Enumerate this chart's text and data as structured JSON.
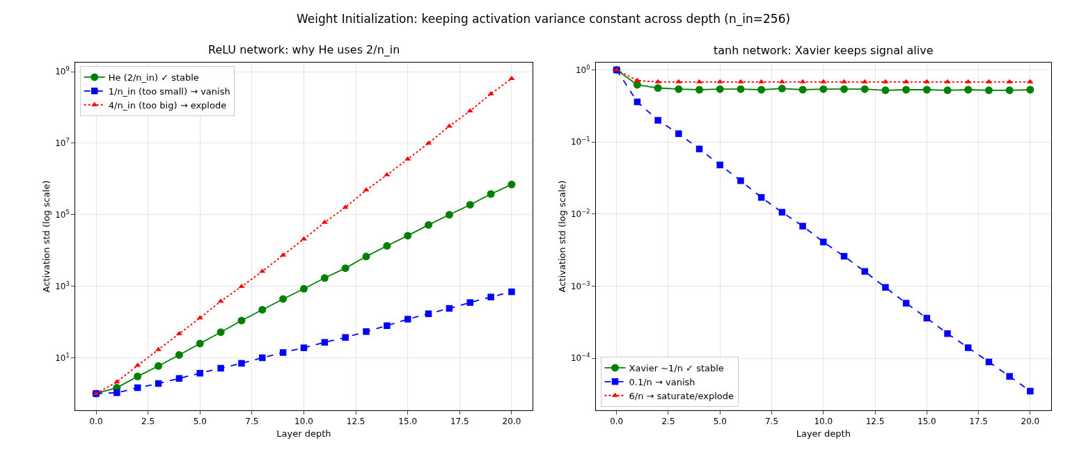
{
  "chart_data": [
    {
      "type": "line",
      "title": "ReLU network: why He uses 2/n_in",
      "xlabel": "Layer depth",
      "ylabel": "Activation std (log scale)",
      "log": "y",
      "grid": true,
      "legend": "top left",
      "annotations": [
        "Weight Initialization: keeping activation variance constant across depth (n_in=256)"
      ],
      "xlim": [
        -1,
        21
      ],
      "xticks": [
        {
          "value": 0,
          "label": "0.0"
        },
        {
          "value": 2.5,
          "label": "2.5"
        },
        {
          "value": 5,
          "label": "5.0"
        },
        {
          "value": 7.5,
          "label": "7.5"
        },
        {
          "value": 10,
          "label": "10.0"
        },
        {
          "value": 12.5,
          "label": "12.5"
        },
        {
          "value": 15,
          "label": "15.0"
        },
        {
          "value": 17.5,
          "label": "17.5"
        },
        {
          "value": 20,
          "label": "20.0"
        }
      ],
      "ylim": [
        0.34,
        1800000000.0
      ],
      "yticks": [
        {
          "value": 10,
          "label": "10$^{1}$"
        },
        {
          "value": 1000,
          "label": "10$^{3}$"
        },
        {
          "value": 100000,
          "label": "10$^{5}$"
        },
        {
          "value": 10000000,
          "label": "10$^{7}$"
        },
        {
          "value": 1000000000,
          "label": "10$^{9}$"
        }
      ],
      "x": [
        0,
        1,
        2,
        3,
        4,
        5,
        6,
        7,
        8,
        9,
        10,
        11,
        12,
        13,
        14,
        15,
        16,
        17,
        18,
        19,
        20
      ],
      "series": [
        {
          "name": "He (2/n_in) ✓ stable",
          "color": "#008000",
          "marker": "circle",
          "line_style": "solid",
          "values": [
            1,
            1.45,
            3.0,
            5.9,
            12,
            25,
            52,
            110,
            220,
            440,
            850,
            1700,
            3200,
            6800,
            13500,
            26000,
            52000,
            100000,
            190000,
            380000,
            700000
          ]
        },
        {
          "name": "1/n_in (too small) → vanish",
          "color": "#0000ff",
          "marker": "square",
          "line_style": "dashed",
          "values": [
            1,
            1.05,
            1.45,
            1.9,
            2.65,
            3.7,
            5.1,
            7,
            10,
            14,
            19,
            27,
            37,
            54,
            79,
            120,
            170,
            240,
            350,
            500,
            700
          ]
        },
        {
          "name": "4/n_in (too big) → explode",
          "color": "#ff0000",
          "marker": "triangle",
          "line_style": "dotted",
          "values": [
            1,
            2.1,
            6.1,
            17,
            47,
            130,
            380,
            980,
            2600,
            7400,
            21000,
            61000,
            160000,
            490000,
            1300000,
            3600000,
            10000000,
            30000000,
            80000000,
            240000000,
            640000000
          ]
        }
      ]
    },
    {
      "type": "line",
      "title": "tanh network: Xavier keeps signal alive",
      "xlabel": "Layer depth",
      "ylabel": "Activation std (log scale)",
      "log": "y",
      "grid": true,
      "legend": "bottom left",
      "xlim": [
        -1,
        21
      ],
      "xticks": [
        {
          "value": 0,
          "label": "0.0"
        },
        {
          "value": 2.5,
          "label": "2.5"
        },
        {
          "value": 5,
          "label": "5.0"
        },
        {
          "value": 7.5,
          "label": "7.5"
        },
        {
          "value": 10,
          "label": "10.0"
        },
        {
          "value": 12.5,
          "label": "12.5"
        },
        {
          "value": 15,
          "label": "15.0"
        },
        {
          "value": 17.5,
          "label": "17.5"
        },
        {
          "value": 20,
          "label": "20.0"
        }
      ],
      "ylim": [
        1.9e-05,
        1.26
      ],
      "yticks": [
        {
          "value": 0.0001,
          "label": "10$^{−4}$"
        },
        {
          "value": 0.001,
          "label": "10$^{−3}$"
        },
        {
          "value": 0.01,
          "label": "10$^{−2}$"
        },
        {
          "value": 0.1,
          "label": "10$^{−1}$"
        },
        {
          "value": 1,
          "label": "10$^{0}$"
        }
      ],
      "x": [
        0,
        1,
        2,
        3,
        4,
        5,
        6,
        7,
        8,
        9,
        10,
        11,
        12,
        13,
        14,
        15,
        16,
        17,
        18,
        19,
        20
      ],
      "series": [
        {
          "name": "Xavier ~1/n ✓ stable",
          "color": "#008000",
          "marker": "circle",
          "line_style": "solid",
          "values": [
            1,
            0.62,
            0.56,
            0.54,
            0.53,
            0.54,
            0.54,
            0.53,
            0.55,
            0.53,
            0.54,
            0.54,
            0.54,
            0.52,
            0.53,
            0.53,
            0.52,
            0.53,
            0.52,
            0.52,
            0.53
          ]
        },
        {
          "name": "0.1/n → vanish",
          "color": "#0000ff",
          "marker": "square",
          "line_style": "dashed",
          "values": [
            1,
            0.36,
            0.2,
            0.13,
            0.08,
            0.048,
            0.029,
            0.017,
            0.0106,
            0.0068,
            0.0041,
            0.0026,
            0.0016,
            0.00096,
            0.00058,
            0.00036,
            0.00022,
            0.00014,
            8.9e-05,
            5.6e-05,
            3.5e-05
          ]
        },
        {
          "name": "6/n → saturate/explode",
          "color": "#ff0000",
          "marker": "triangle",
          "line_style": "dotted",
          "values": [
            1,
            0.71,
            0.68,
            0.68,
            0.68,
            0.68,
            0.68,
            0.68,
            0.68,
            0.68,
            0.68,
            0.68,
            0.68,
            0.68,
            0.68,
            0.68,
            0.68,
            0.68,
            0.68,
            0.68,
            0.68
          ]
        }
      ]
    }
  ]
}
